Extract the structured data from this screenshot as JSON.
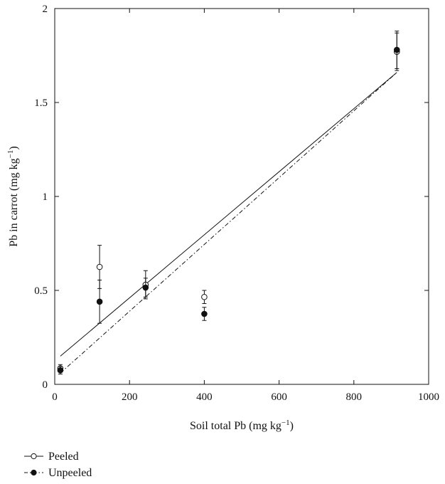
{
  "chart_data": {
    "type": "scatter",
    "xlabel": "Soil total Pb (mg kg",
    "xlabel_sup": "−1",
    "xlabel_end": ")",
    "ylabel": "Pb in carrot (mg kg",
    "ylabel_sup": "−1",
    "ylabel_end": ")",
    "xlim": [
      0,
      1000
    ],
    "ylim": [
      0,
      2
    ],
    "xticks": [
      0,
      200,
      400,
      600,
      800,
      1000
    ],
    "yticks": [
      0,
      0.5,
      1,
      1.5,
      2
    ],
    "xtick_labels": [
      "0",
      "200",
      "400",
      "600",
      "800",
      "1000"
    ],
    "ytick_labels": [
      "0",
      "0.5",
      "1",
      "1.5",
      "2"
    ],
    "grid": false,
    "legend_position": "bottom-left",
    "series": [
      {
        "name": "Peeled",
        "marker": "open-circle",
        "line_style": "solid",
        "points": [
          {
            "x": 15,
            "y": 0.085,
            "err": 0.02
          },
          {
            "x": 120,
            "y": 0.625,
            "err": 0.115
          },
          {
            "x": 243,
            "y": 0.53,
            "err": 0.075
          },
          {
            "x": 400,
            "y": 0.465,
            "err": 0.035
          },
          {
            "x": 915,
            "y": 1.77,
            "err": 0.1
          }
        ],
        "fit": [
          [
            15,
            0.15
          ],
          [
            915,
            1.66
          ]
        ]
      },
      {
        "name": "Unpeeled",
        "marker": "filled-circle",
        "line_style": "dash-dot",
        "points": [
          {
            "x": 15,
            "y": 0.075,
            "err": 0.02
          },
          {
            "x": 120,
            "y": 0.44,
            "err": 0.115
          },
          {
            "x": 243,
            "y": 0.515,
            "err": 0.05
          },
          {
            "x": 400,
            "y": 0.375,
            "err": 0.035
          },
          {
            "x": 915,
            "y": 1.78,
            "err": 0.1
          }
        ],
        "fit": [
          [
            15,
            0.06
          ],
          [
            915,
            1.66
          ]
        ]
      }
    ]
  }
}
